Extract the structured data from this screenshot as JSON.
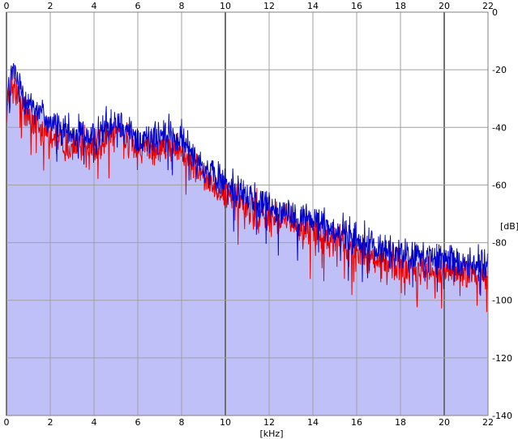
{
  "chart_data": {
    "type": "area",
    "title": "",
    "xlabel": "[kHz]",
    "ylabel": "[dB]",
    "xlim": [
      0,
      22
    ],
    "ylim": [
      -140,
      0
    ],
    "x_ticks": [
      0,
      2,
      4,
      6,
      8,
      10,
      12,
      14,
      16,
      18,
      20,
      22
    ],
    "y_ticks": [
      0,
      -20,
      -40,
      -60,
      -80,
      -100,
      -120,
      -140
    ],
    "x_tick_labels": [
      "0",
      "2",
      "4",
      "6",
      "8",
      "10",
      "12",
      "14",
      "16",
      "18",
      "20",
      "22"
    ],
    "y_tick_labels": [
      "0",
      "-20",
      "-40",
      "-60",
      "-80",
      "-100",
      "-120",
      "-140"
    ],
    "grid": true,
    "legend": "none",
    "series": [
      {
        "color": "#0000cc",
        "x": [
          0,
          0.1,
          0.3,
          0.5,
          1,
          1.5,
          2,
          2.5,
          3,
          3.5,
          4,
          4.5,
          5,
          5.5,
          6,
          6.5,
          7,
          7.5,
          8,
          8.5,
          9,
          9.5,
          10,
          11,
          12,
          13,
          14,
          15,
          16,
          17,
          18,
          19,
          20,
          21,
          22
        ],
        "y": [
          -33,
          -26,
          -20,
          -24,
          -31,
          -34,
          -38,
          -41,
          -43,
          -42,
          -44,
          -40,
          -37,
          -40,
          -45,
          -43,
          -44,
          -42,
          -45,
          -48,
          -54,
          -57,
          -59,
          -64,
          -67,
          -70,
          -72,
          -75,
          -79,
          -82,
          -84,
          -85,
          -86,
          -87,
          -88
        ]
      },
      {
        "color": "#ee0000",
        "x": [
          0,
          0.1,
          0.3,
          0.5,
          1,
          1.5,
          2,
          2.5,
          3,
          3.5,
          4,
          4.5,
          5,
          5.5,
          6,
          6.5,
          7,
          7.5,
          8,
          8.5,
          9,
          9.5,
          10,
          11,
          12,
          13,
          14,
          15,
          16,
          17,
          18,
          19,
          20,
          21,
          22
        ],
        "y": [
          -38,
          -30,
          -26,
          -29,
          -36,
          -39,
          -42,
          -45,
          -47,
          -46,
          -48,
          -44,
          -41,
          -44,
          -49,
          -47,
          -48,
          -46,
          -49,
          -52,
          -58,
          -61,
          -63,
          -68,
          -71,
          -74,
          -76,
          -79,
          -83,
          -86,
          -88,
          -89,
          -90,
          -91,
          -92
        ]
      }
    ],
    "fill_color": "#c0c0f8"
  }
}
